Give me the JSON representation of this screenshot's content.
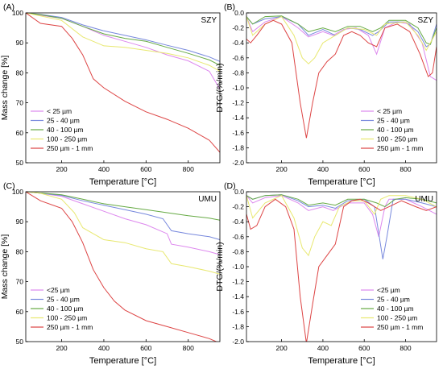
{
  "chart_data": [
    {
      "type": "line",
      "panel_label": "(A)",
      "site": "SZY",
      "xlabel": "Temperature [°C]",
      "ylabel": "Mass change [%]",
      "xlim": [
        30,
        950
      ],
      "ylim": [
        50,
        100
      ],
      "xticks": [
        200,
        400,
        600,
        800
      ],
      "yticks": [
        50,
        60,
        70,
        80,
        90,
        100
      ],
      "legend_position": "bottom-left",
      "series": [
        {
          "name": "< 25 µm",
          "color": "#dd88ee",
          "x": [
            30,
            100,
            200,
            300,
            400,
            500,
            600,
            700,
            800,
            900,
            950
          ],
          "y": [
            100,
            99.2,
            98.2,
            95.5,
            92.5,
            90.5,
            88.5,
            86,
            84,
            80.5,
            74.5
          ]
        },
        {
          "name": "25 - 40 µm",
          "color": "#7788dd",
          "x": [
            30,
            100,
            200,
            300,
            400,
            500,
            600,
            700,
            800,
            900,
            950
          ],
          "y": [
            100,
            99.5,
            98.5,
            96,
            94,
            92.5,
            91,
            89.2,
            87.5,
            85.3,
            83.8
          ]
        },
        {
          "name": "40 - 100 µm",
          "color": "#66aa44",
          "x": [
            30,
            100,
            200,
            300,
            400,
            500,
            600,
            700,
            800,
            900,
            950
          ],
          "y": [
            100,
            99.4,
            98.2,
            95.5,
            93,
            91.5,
            90.5,
            88.5,
            86.5,
            84.3,
            82.5
          ]
        },
        {
          "name": "100 - 250 µm",
          "color": "#e8e870",
          "x": [
            30,
            100,
            200,
            300,
            400,
            500,
            600,
            700,
            800,
            900,
            950
          ],
          "y": [
            100,
            99,
            97.5,
            92,
            89,
            88.5,
            87.5,
            86.5,
            85,
            82.5,
            80.5
          ]
        },
        {
          "name": "250 µm - 1 mm",
          "color": "#dd4444",
          "x": [
            30,
            100,
            200,
            250,
            300,
            350,
            400,
            500,
            600,
            700,
            800,
            900,
            950
          ],
          "y": [
            100,
            96.5,
            95.5,
            91.5,
            86,
            78,
            75,
            70.5,
            67,
            64.5,
            61.5,
            57.5,
            53.5
          ]
        }
      ]
    },
    {
      "type": "line",
      "panel_label": "(B)",
      "site": "SZY",
      "xlabel": "Temperature [°C]",
      "ylabel": "DTG/(%/min)",
      "xlim": [
        30,
        950
      ],
      "ylim": [
        -2.0,
        0.0
      ],
      "xticks": [
        200,
        400,
        600,
        800
      ],
      "yticks": [
        0.0,
        -0.2,
        -0.4,
        -0.6,
        -0.8,
        -1.0,
        -1.2,
        -1.4,
        -1.6,
        -1.8,
        -2.0
      ],
      "legend_position": "bottom-right",
      "series": [
        {
          "name": "< 25 µm",
          "color": "#dd88ee",
          "x": [
            30,
            60,
            120,
            200,
            280,
            330,
            400,
            450,
            500,
            560,
            620,
            660,
            700,
            760,
            820,
            880,
            920,
            950
          ],
          "y": [
            -0.05,
            -0.25,
            -0.12,
            -0.05,
            -0.2,
            -0.32,
            -0.25,
            -0.3,
            -0.22,
            -0.2,
            -0.3,
            -0.55,
            -0.2,
            -0.12,
            -0.15,
            -0.4,
            -0.85,
            -0.9
          ]
        },
        {
          "name": "25 - 40 µm",
          "color": "#7788dd",
          "x": [
            30,
            60,
            120,
            200,
            280,
            330,
            400,
            460,
            520,
            580,
            640,
            670,
            720,
            800,
            860,
            900,
            920,
            950
          ],
          "y": [
            -0.05,
            -0.15,
            -0.08,
            -0.05,
            -0.15,
            -0.3,
            -0.22,
            -0.3,
            -0.2,
            -0.22,
            -0.3,
            -0.25,
            -0.12,
            -0.12,
            -0.25,
            -0.45,
            -0.42,
            -0.15
          ]
        },
        {
          "name": "40 - 100 µm",
          "color": "#66aa44",
          "x": [
            30,
            60,
            120,
            200,
            280,
            330,
            400,
            460,
            520,
            580,
            640,
            680,
            720,
            800,
            860,
            900,
            920,
            950
          ],
          "y": [
            -0.05,
            -0.15,
            -0.05,
            -0.04,
            -0.15,
            -0.25,
            -0.2,
            -0.25,
            -0.18,
            -0.18,
            -0.25,
            -0.2,
            -0.1,
            -0.1,
            -0.2,
            -0.4,
            -0.42,
            -0.2
          ]
        },
        {
          "name": "100 - 250 µm",
          "color": "#e8e870",
          "x": [
            30,
            60,
            120,
            200,
            260,
            300,
            330,
            360,
            400,
            460,
            520,
            600,
            660,
            700,
            800,
            860,
            900,
            950
          ],
          "y": [
            -0.05,
            -0.3,
            -0.15,
            -0.05,
            -0.3,
            -0.6,
            -0.68,
            -0.6,
            -0.4,
            -0.3,
            -0.2,
            -0.22,
            -0.3,
            -0.15,
            -0.12,
            -0.3,
            -0.5,
            -0.25
          ]
        },
        {
          "name": "250 µm - 1 mm",
          "color": "#dd4444",
          "x": [
            30,
            50,
            80,
            120,
            160,
            200,
            250,
            290,
            320,
            350,
            380,
            420,
            460,
            500,
            540,
            580,
            620,
            660,
            700,
            760,
            820,
            870,
            910,
            930,
            950
          ],
          "y": [
            -0.35,
            -0.4,
            -0.3,
            -0.15,
            -0.1,
            -0.15,
            -0.4,
            -1.2,
            -1.67,
            -1.2,
            -0.8,
            -0.65,
            -0.55,
            -0.3,
            -0.25,
            -0.3,
            -0.4,
            -0.45,
            -0.2,
            -0.15,
            -0.25,
            -0.55,
            -0.85,
            -0.8,
            -0.45
          ]
        }
      ]
    },
    {
      "type": "line",
      "panel_label": "(C)",
      "site": "UMU",
      "xlabel": "Temperature [°C]",
      "ylabel": "Mass change [%]",
      "xlim": [
        30,
        950
      ],
      "ylim": [
        50,
        100
      ],
      "xticks": [
        200,
        400,
        600,
        800
      ],
      "yticks": [
        50,
        60,
        70,
        80,
        90,
        100
      ],
      "legend_position": "bottom-left",
      "series": [
        {
          "name": "<25 µm",
          "color": "#dd88ee",
          "x": [
            30,
            100,
            200,
            300,
            400,
            500,
            600,
            700,
            720,
            800,
            900,
            950
          ],
          "y": [
            100,
            99.5,
            98.5,
            96,
            93.5,
            91,
            89,
            86,
            82.5,
            81.5,
            80,
            79
          ]
        },
        {
          "name": "25 - 40 µm",
          "color": "#7788dd",
          "x": [
            30,
            100,
            200,
            300,
            400,
            500,
            600,
            680,
            720,
            800,
            900,
            950
          ],
          "y": [
            100,
            99.5,
            98.8,
            97,
            95.5,
            94,
            92.5,
            91,
            87,
            86,
            85,
            84
          ]
        },
        {
          "name": "40 - 100 µm",
          "color": "#66aa44",
          "x": [
            30,
            100,
            200,
            300,
            400,
            500,
            600,
            700,
            800,
            900,
            950
          ],
          "y": [
            100,
            99.6,
            99,
            97.5,
            96,
            95,
            94,
            93,
            92,
            91.2,
            90.5
          ]
        },
        {
          "name": "100 - 250 µm",
          "color": "#e8e870",
          "x": [
            30,
            100,
            200,
            260,
            300,
            350,
            400,
            500,
            600,
            680,
            720,
            800,
            900,
            950
          ],
          "y": [
            100,
            99.5,
            97.5,
            93,
            88,
            86,
            84,
            83,
            81,
            80,
            76,
            75,
            73.5,
            72.5
          ]
        },
        {
          "name": "250 µm - 1 mm",
          "color": "#dd4444",
          "x": [
            30,
            100,
            200,
            250,
            300,
            350,
            400,
            450,
            500,
            600,
            700,
            800,
            900,
            950
          ],
          "y": [
            100,
            97,
            94.5,
            90,
            83,
            74,
            68,
            63.5,
            60.5,
            57,
            55,
            53,
            51,
            49.5
          ]
        }
      ]
    },
    {
      "type": "line",
      "panel_label": "(D)",
      "site": "UMU",
      "xlabel": "Temperature [°C]",
      "ylabel": "DTG/(%/min)",
      "xlim": [
        30,
        950
      ],
      "ylim": [
        -2.0,
        0.0
      ],
      "xticks": [
        200,
        400,
        600,
        800
      ],
      "yticks": [
        0.0,
        -0.2,
        -0.4,
        -0.6,
        -0.8,
        -1.0,
        -1.2,
        -1.4,
        -1.6,
        -1.8,
        -2.0
      ],
      "legend_position": "bottom-right",
      "series": [
        {
          "name": "<25 µm",
          "color": "#dd88ee",
          "x": [
            30,
            60,
            120,
            200,
            280,
            330,
            400,
            450,
            520,
            600,
            640,
            670,
            700,
            720,
            800,
            880,
            950
          ],
          "y": [
            -0.05,
            -0.15,
            -0.08,
            -0.05,
            -0.15,
            -0.25,
            -0.2,
            -0.25,
            -0.15,
            -0.15,
            -0.3,
            -0.6,
            -0.2,
            -0.1,
            -0.1,
            -0.2,
            -0.3
          ]
        },
        {
          "name": "25 - 40 µm",
          "color": "#7788dd",
          "x": [
            30,
            60,
            120,
            200,
            280,
            330,
            400,
            460,
            520,
            600,
            650,
            690,
            710,
            740,
            800,
            880,
            950
          ],
          "y": [
            -0.05,
            -0.1,
            -0.05,
            -0.04,
            -0.12,
            -0.2,
            -0.18,
            -0.22,
            -0.12,
            -0.1,
            -0.2,
            -0.9,
            -0.6,
            -0.1,
            -0.1,
            -0.15,
            -0.2
          ]
        },
        {
          "name": "40 - 100 µm",
          "color": "#66aa44",
          "x": [
            30,
            60,
            120,
            200,
            280,
            330,
            400,
            460,
            520,
            600,
            660,
            700,
            750,
            800,
            880,
            950
          ],
          "y": [
            -0.05,
            -0.1,
            -0.05,
            -0.04,
            -0.1,
            -0.18,
            -0.15,
            -0.18,
            -0.1,
            -0.1,
            -0.15,
            -0.2,
            -0.1,
            -0.08,
            -0.1,
            -0.15
          ]
        },
        {
          "name": "100 - 250 µm",
          "color": "#e8e870",
          "x": [
            30,
            60,
            120,
            200,
            260,
            300,
            330,
            360,
            400,
            440,
            480,
            540,
            600,
            650,
            680,
            720,
            800,
            880,
            950
          ],
          "y": [
            -0.05,
            -0.35,
            -0.15,
            -0.05,
            -0.35,
            -0.75,
            -0.85,
            -0.6,
            -0.4,
            -0.45,
            -0.2,
            -0.12,
            -0.12,
            -0.3,
            -0.1,
            -0.05,
            -0.05,
            -0.1,
            -0.2
          ]
        },
        {
          "name": "250 µm - 1 mm",
          "color": "#dd4444",
          "x": [
            30,
            50,
            80,
            120,
            170,
            220,
            260,
            290,
            320,
            350,
            380,
            420,
            460,
            500,
            540,
            580,
            620,
            680,
            720,
            780,
            850,
            900,
            950
          ],
          "y": [
            -0.3,
            -0.5,
            -0.45,
            -0.2,
            -0.1,
            -0.2,
            -0.5,
            -1.4,
            -2.02,
            -1.5,
            -1.0,
            -0.85,
            -0.7,
            -0.2,
            -0.12,
            -0.1,
            -0.15,
            -0.25,
            -0.2,
            -0.12,
            -0.2,
            -0.25,
            -0.2
          ]
        }
      ]
    }
  ]
}
